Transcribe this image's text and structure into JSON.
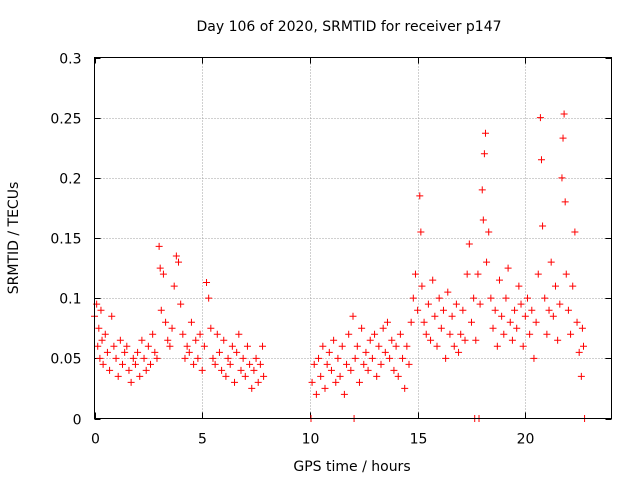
{
  "chart_data": {
    "type": "scatter",
    "title": "Day 106 of 2020, SRMTID for receiver p147",
    "xlabel": "GPS time / hours",
    "ylabel": "SRMTID / TECUs",
    "xlim": [
      0,
      24
    ],
    "ylim": [
      0,
      0.3
    ],
    "x_ticks": [
      0,
      5,
      10,
      15,
      20
    ],
    "x_tick_labels": [
      "0",
      "5",
      "10",
      "15",
      "20"
    ],
    "y_ticks": [
      0,
      0.05,
      0.1,
      0.15,
      0.2,
      0.25,
      0.3
    ],
    "y_tick_labels": [
      "0",
      "0.05",
      "0.1",
      "0.15",
      "0.2",
      "0.25",
      "0.3"
    ],
    "grid": true,
    "marker": "+",
    "series": [
      {
        "name": "SRMTID",
        "color": "#ff0000",
        "points": [
          [
            0.0,
            0.085
          ],
          [
            0.1,
            0.095
          ],
          [
            0.15,
            0.06
          ],
          [
            0.2,
            0.075
          ],
          [
            0.25,
            0.05
          ],
          [
            0.3,
            0.09
          ],
          [
            0.35,
            0.065
          ],
          [
            0.4,
            0.045
          ],
          [
            0.5,
            0.07
          ],
          [
            0.6,
            0.055
          ],
          [
            0.7,
            0.04
          ],
          [
            0.8,
            0.085
          ],
          [
            0.9,
            0.06
          ],
          [
            1.0,
            0.05
          ],
          [
            1.1,
            0.035
          ],
          [
            1.2,
            0.065
          ],
          [
            1.3,
            0.045
          ],
          [
            1.4,
            0.055
          ],
          [
            1.5,
            0.06
          ],
          [
            1.6,
            0.04
          ],
          [
            1.7,
            0.03
          ],
          [
            1.8,
            0.05
          ],
          [
            1.9,
            0.045
          ],
          [
            2.0,
            0.055
          ],
          [
            2.1,
            0.035
          ],
          [
            2.2,
            0.065
          ],
          [
            2.3,
            0.05
          ],
          [
            2.4,
            0.04
          ],
          [
            2.5,
            0.06
          ],
          [
            2.6,
            0.045
          ],
          [
            2.7,
            0.07
          ],
          [
            2.8,
            0.055
          ],
          [
            2.9,
            0.05
          ],
          [
            3.0,
            0.143
          ],
          [
            3.05,
            0.125
          ],
          [
            3.1,
            0.09
          ],
          [
            3.2,
            0.12
          ],
          [
            3.3,
            0.08
          ],
          [
            3.4,
            0.065
          ],
          [
            3.5,
            0.06
          ],
          [
            3.6,
            0.075
          ],
          [
            3.7,
            0.11
          ],
          [
            3.8,
            0.135
          ],
          [
            3.9,
            0.13
          ],
          [
            4.0,
            0.095
          ],
          [
            4.1,
            0.07
          ],
          [
            4.2,
            0.05
          ],
          [
            4.3,
            0.06
          ],
          [
            4.4,
            0.055
          ],
          [
            4.5,
            0.08
          ],
          [
            4.6,
            0.045
          ],
          [
            4.7,
            0.065
          ],
          [
            4.8,
            0.05
          ],
          [
            4.9,
            0.07
          ],
          [
            5.0,
            0.04
          ],
          [
            5.1,
            0.06
          ],
          [
            5.2,
            0.113
          ],
          [
            5.3,
            0.1
          ],
          [
            5.4,
            0.075
          ],
          [
            5.5,
            0.05
          ],
          [
            5.6,
            0.045
          ],
          [
            5.7,
            0.07
          ],
          [
            5.8,
            0.055
          ],
          [
            5.9,
            0.04
          ],
          [
            6.0,
            0.065
          ],
          [
            6.1,
            0.035
          ],
          [
            6.2,
            0.05
          ],
          [
            6.3,
            0.045
          ],
          [
            6.4,
            0.06
          ],
          [
            6.5,
            0.03
          ],
          [
            6.6,
            0.055
          ],
          [
            6.7,
            0.07
          ],
          [
            6.8,
            0.04
          ],
          [
            6.9,
            0.05
          ],
          [
            7.0,
            0.035
          ],
          [
            7.1,
            0.06
          ],
          [
            7.2,
            0.045
          ],
          [
            7.3,
            0.025
          ],
          [
            7.4,
            0.04
          ],
          [
            7.5,
            0.05
          ],
          [
            7.6,
            0.03
          ],
          [
            7.7,
            0.045
          ],
          [
            7.8,
            0.06
          ],
          [
            7.85,
            0.035
          ],
          [
            10.05,
            0.0
          ],
          [
            10.1,
            0.03
          ],
          [
            10.2,
            0.045
          ],
          [
            10.3,
            0.02
          ],
          [
            10.4,
            0.05
          ],
          [
            10.5,
            0.035
          ],
          [
            10.6,
            0.06
          ],
          [
            10.7,
            0.025
          ],
          [
            10.8,
            0.045
          ],
          [
            10.9,
            0.055
          ],
          [
            11.0,
            0.04
          ],
          [
            11.1,
            0.065
          ],
          [
            11.2,
            0.03
          ],
          [
            11.3,
            0.05
          ],
          [
            11.4,
            0.035
          ],
          [
            11.5,
            0.06
          ],
          [
            11.6,
            0.02
          ],
          [
            11.7,
            0.045
          ],
          [
            11.8,
            0.07
          ],
          [
            11.9,
            0.04
          ],
          [
            12.0,
            0.085
          ],
          [
            12.05,
            0.0
          ],
          [
            12.1,
            0.05
          ],
          [
            12.2,
            0.06
          ],
          [
            12.3,
            0.03
          ],
          [
            12.4,
            0.075
          ],
          [
            12.5,
            0.045
          ],
          [
            12.6,
            0.055
          ],
          [
            12.7,
            0.04
          ],
          [
            12.8,
            0.065
          ],
          [
            12.9,
            0.05
          ],
          [
            13.0,
            0.07
          ],
          [
            13.1,
            0.035
          ],
          [
            13.2,
            0.06
          ],
          [
            13.3,
            0.045
          ],
          [
            13.4,
            0.075
          ],
          [
            13.5,
            0.055
          ],
          [
            13.6,
            0.08
          ],
          [
            13.7,
            0.05
          ],
          [
            13.8,
            0.065
          ],
          [
            13.9,
            0.04
          ],
          [
            14.0,
            0.06
          ],
          [
            14.1,
            0.035
          ],
          [
            14.2,
            0.07
          ],
          [
            14.3,
            0.05
          ],
          [
            14.4,
            0.025
          ],
          [
            14.5,
            0.06
          ],
          [
            14.6,
            0.045
          ],
          [
            14.7,
            0.08
          ],
          [
            14.8,
            0.1
          ],
          [
            14.9,
            0.12
          ],
          [
            15.0,
            0.09
          ],
          [
            15.1,
            0.185
          ],
          [
            15.15,
            0.155
          ],
          [
            15.2,
            0.11
          ],
          [
            15.3,
            0.08
          ],
          [
            15.4,
            0.07
          ],
          [
            15.5,
            0.095
          ],
          [
            15.6,
            0.065
          ],
          [
            15.7,
            0.115
          ],
          [
            15.8,
            0.085
          ],
          [
            15.9,
            0.06
          ],
          [
            16.0,
            0.1
          ],
          [
            16.1,
            0.075
          ],
          [
            16.2,
            0.09
          ],
          [
            16.3,
            0.05
          ],
          [
            16.4,
            0.105
          ],
          [
            16.5,
            0.07
          ],
          [
            16.6,
            0.085
          ],
          [
            16.7,
            0.06
          ],
          [
            16.8,
            0.095
          ],
          [
            16.9,
            0.055
          ],
          [
            17.0,
            0.07
          ],
          [
            17.1,
            0.09
          ],
          [
            17.2,
            0.065
          ],
          [
            17.3,
            0.12
          ],
          [
            17.4,
            0.145
          ],
          [
            17.5,
            0.08
          ],
          [
            17.6,
            0.1
          ],
          [
            17.65,
            0.0
          ],
          [
            17.7,
            0.065
          ],
          [
            17.8,
            0.12
          ],
          [
            17.85,
            0.0
          ],
          [
            17.9,
            0.095
          ],
          [
            18.0,
            0.19
          ],
          [
            18.05,
            0.165
          ],
          [
            18.1,
            0.22
          ],
          [
            18.15,
            0.237
          ],
          [
            18.2,
            0.13
          ],
          [
            18.3,
            0.155
          ],
          [
            18.4,
            0.1
          ],
          [
            18.5,
            0.075
          ],
          [
            18.6,
            0.09
          ],
          [
            18.7,
            0.06
          ],
          [
            18.8,
            0.115
          ],
          [
            18.9,
            0.085
          ],
          [
            19.0,
            0.07
          ],
          [
            19.1,
            0.1
          ],
          [
            19.2,
            0.125
          ],
          [
            19.3,
            0.08
          ],
          [
            19.4,
            0.065
          ],
          [
            19.5,
            0.09
          ],
          [
            19.6,
            0.075
          ],
          [
            19.7,
            0.11
          ],
          [
            19.8,
            0.095
          ],
          [
            19.9,
            0.06
          ],
          [
            20.0,
            0.085
          ],
          [
            20.1,
            0.1
          ],
          [
            20.2,
            0.07
          ],
          [
            20.3,
            0.09
          ],
          [
            20.4,
            0.05
          ],
          [
            20.5,
            0.08
          ],
          [
            20.6,
            0.12
          ],
          [
            20.7,
            0.25
          ],
          [
            20.75,
            0.215
          ],
          [
            20.8,
            0.16
          ],
          [
            20.9,
            0.1
          ],
          [
            21.0,
            0.07
          ],
          [
            21.1,
            0.09
          ],
          [
            21.2,
            0.13
          ],
          [
            21.3,
            0.085
          ],
          [
            21.4,
            0.11
          ],
          [
            21.5,
            0.065
          ],
          [
            21.6,
            0.095
          ],
          [
            21.7,
            0.2
          ],
          [
            21.75,
            0.233
          ],
          [
            21.8,
            0.253
          ],
          [
            21.85,
            0.18
          ],
          [
            21.9,
            0.12
          ],
          [
            22.0,
            0.09
          ],
          [
            22.1,
            0.07
          ],
          [
            22.2,
            0.11
          ],
          [
            22.3,
            0.155
          ],
          [
            22.4,
            0.08
          ],
          [
            22.5,
            0.055
          ],
          [
            22.6,
            0.035
          ],
          [
            22.65,
            0.075
          ],
          [
            22.7,
            0.06
          ],
          [
            22.75,
            0.0
          ]
        ]
      }
    ]
  }
}
